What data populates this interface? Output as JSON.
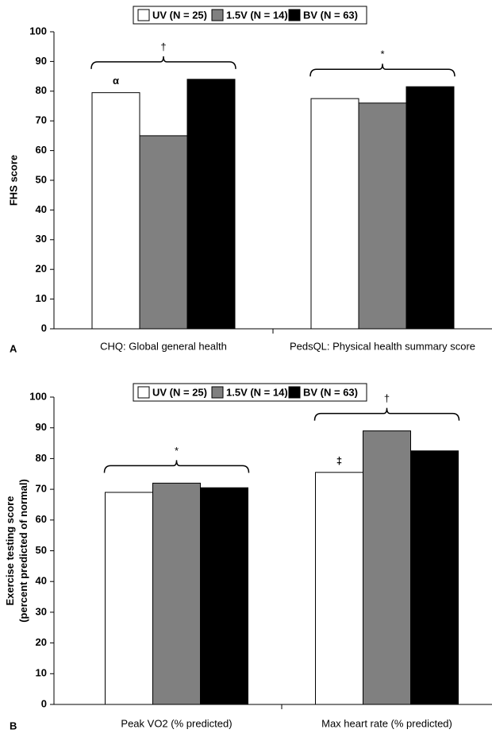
{
  "chart_data": [
    {
      "type": "bar",
      "panel_label": "A",
      "y_label": [
        "FHS score"
      ],
      "categories": [
        "CHQ: Global general health",
        "PedsQL: Physical health summary score"
      ],
      "group_annotations": [
        "†",
        "*"
      ],
      "series": [
        {
          "name": "UV (N = 25)",
          "color": "#ffffff",
          "values": [
            79.5,
            77.5
          ],
          "annotations": [
            "α",
            null
          ]
        },
        {
          "name": "1.5V (N = 14)",
          "color": "#808080",
          "values": [
            65,
            76
          ]
        },
        {
          "name": "BV (N = 63)",
          "color": "#000000",
          "values": [
            84,
            81.5
          ]
        }
      ],
      "ylim": [
        0,
        100
      ],
      "yticks": [
        0,
        10,
        20,
        30,
        40,
        50,
        60,
        70,
        80,
        90,
        100
      ]
    },
    {
      "type": "bar",
      "panel_label": "B",
      "y_label": [
        "Exercise testing score",
        "(percent predicted of normal)"
      ],
      "categories": [
        "Peak VO2 (% predicted)",
        "Max heart rate (% predicted)"
      ],
      "group_annotations": [
        "*",
        "†"
      ],
      "series": [
        {
          "name": "UV (N = 25)",
          "color": "#ffffff",
          "values": [
            69,
            75.5
          ],
          "annotations": [
            null,
            "‡"
          ]
        },
        {
          "name": "1.5V (N = 14)",
          "color": "#808080",
          "values": [
            72,
            89
          ]
        },
        {
          "name": "BV (N = 63)",
          "color": "#000000",
          "values": [
            70.5,
            82.5
          ]
        }
      ],
      "ylim": [
        0,
        100
      ],
      "yticks": [
        0,
        10,
        20,
        30,
        40,
        50,
        60,
        70,
        80,
        90,
        100
      ]
    }
  ]
}
